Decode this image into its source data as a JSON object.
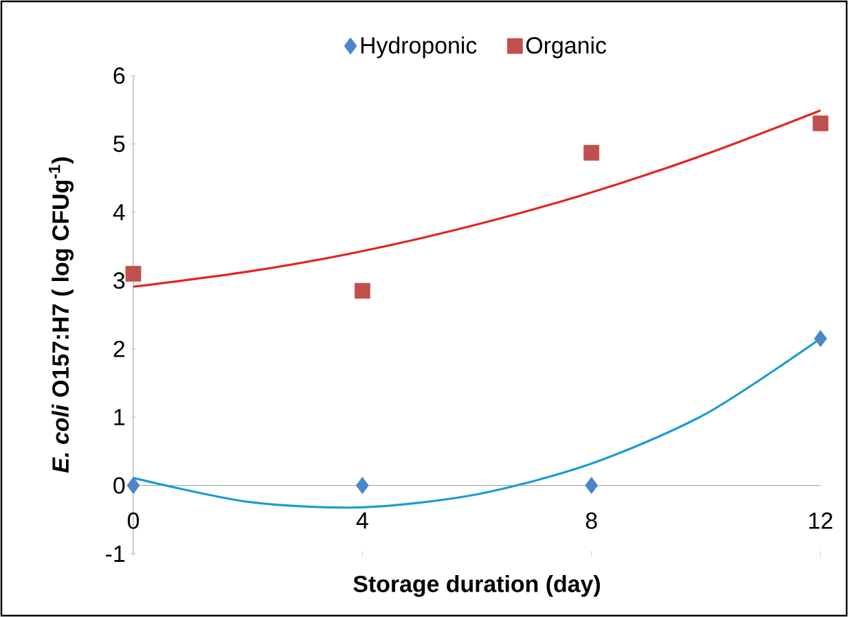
{
  "chart_data": {
    "type": "scatter",
    "xlabel": "Storage duration (day)",
    "ylabel": "*E. coli* O157:H7 ( log CFUg$^{-1}$)",
    "xlim": [
      0,
      12
    ],
    "ylim": [
      -1,
      6
    ],
    "xticks": [
      0,
      4,
      8,
      12
    ],
    "yticks": [
      -1,
      0,
      1,
      2,
      3,
      4,
      5,
      6
    ],
    "grid": false,
    "legend": "top",
    "series": [
      {
        "name": "Hydroponic",
        "marker": "diamond",
        "color": "#4a86c8",
        "x": [
          0,
          4,
          8,
          12
        ],
        "values": [
          0,
          0,
          0,
          2.15
        ]
      },
      {
        "name": "Organic",
        "marker": "square",
        "color": "#c0504d",
        "x": [
          0,
          4,
          8,
          12
        ],
        "values": [
          3.1,
          2.85,
          4.87,
          5.3
        ]
      },
      {
        "type": "line",
        "marker": "none",
        "color": "#1b9ad8",
        "x": [
          0,
          2,
          4,
          6,
          8,
          10,
          12
        ],
        "values": [
          0.11,
          -0.24,
          -0.32,
          -0.13,
          0.32,
          1.05,
          2.15
        ]
      },
      {
        "type": "line",
        "marker": "none",
        "color": "#e3241f",
        "x": [
          0,
          2,
          4,
          6,
          8,
          10,
          12
        ],
        "values": [
          2.91,
          3.13,
          3.43,
          3.82,
          4.29,
          4.85,
          5.49
        ]
      }
    ]
  }
}
